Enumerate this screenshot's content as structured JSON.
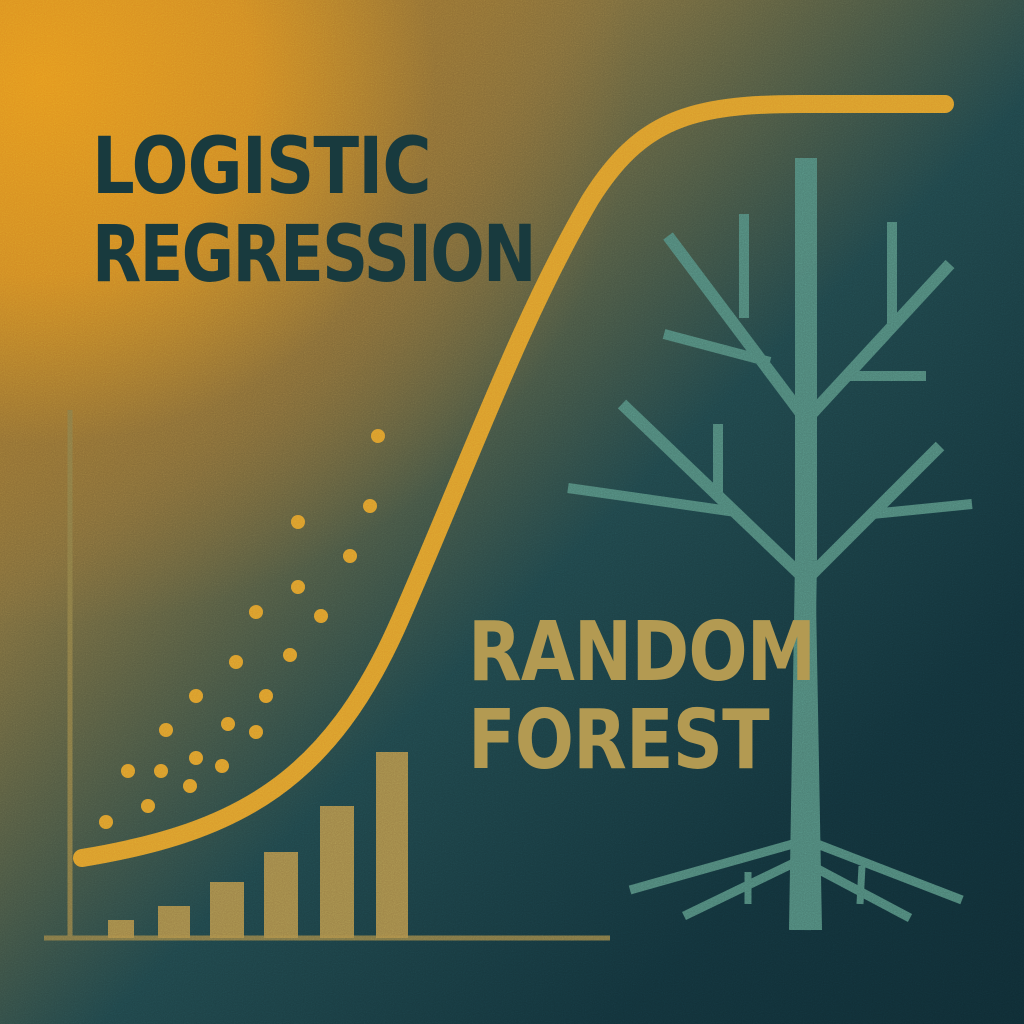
{
  "titles": {
    "logistic_line1": "LOGISTIC",
    "logistic_line2": "REGRESSION",
    "forest_line1": "RANDOM",
    "forest_line2": "FOREST"
  },
  "colors": {
    "orange": "#d99a2b",
    "teal_dark": "#183a3e",
    "forest_text": "#b39a52",
    "tree": "#4f8478",
    "bars": "#a98a48"
  },
  "icons": [
    "sigmoid-curve-icon",
    "tree-icon",
    "bar-chart-icon",
    "scatter-dots-icon"
  ]
}
